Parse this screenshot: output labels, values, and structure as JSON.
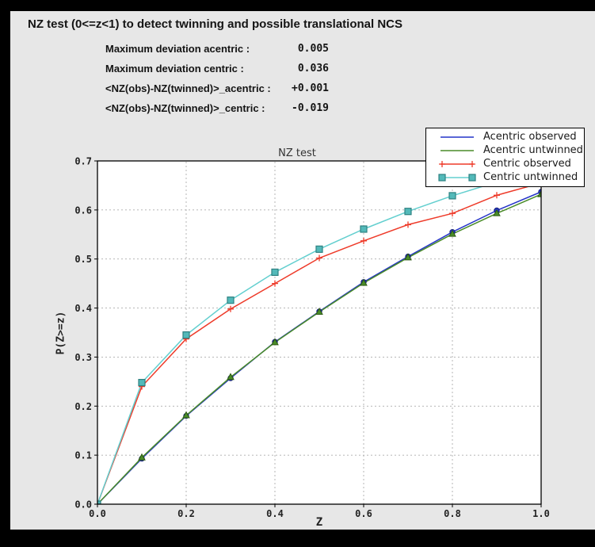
{
  "window": {
    "heading": "NZ test (0<=z<1) to detect twinning and possible translational NCS",
    "stats": [
      {
        "label": "Maximum deviation acentric :",
        "value": "0.005"
      },
      {
        "label": "Maximum deviation centric :",
        "value": "0.036"
      },
      {
        "label": "<NZ(obs)-NZ(twinned)>_acentric :",
        "value": "+0.001"
      },
      {
        "label": "<NZ(obs)-NZ(twinned)>_centric :",
        "value": "-0.019"
      }
    ]
  },
  "chart_data": {
    "type": "line",
    "title": "NZ test",
    "xlabel": "Z",
    "ylabel": "P(Z>=z)",
    "xlim": [
      0.0,
      1.0
    ],
    "ylim": [
      0.0,
      0.7
    ],
    "xticks": [
      0.0,
      0.2,
      0.4,
      0.6,
      0.8,
      1.0
    ],
    "yticks": [
      0.0,
      0.1,
      0.2,
      0.3,
      0.4,
      0.5,
      0.6,
      0.7
    ],
    "grid": true,
    "legend_position": "upper right",
    "x": [
      0.0,
      0.1,
      0.2,
      0.3,
      0.4,
      0.5,
      0.6,
      0.7,
      0.8,
      0.9,
      1.0
    ],
    "series": [
      {
        "name": "Acentric observed",
        "color": "#2433c8",
        "marker": "circle",
        "marker_edge": "#141f7a",
        "values": [
          0.0,
          0.093,
          0.18,
          0.257,
          0.331,
          0.393,
          0.453,
          0.505,
          0.555,
          0.599,
          0.637
        ]
      },
      {
        "name": "Acentric untwinned",
        "color": "#4a8c29",
        "marker": "triangle",
        "marker_edge": "#2c5a12",
        "values": [
          0.0,
          0.095,
          0.181,
          0.259,
          0.33,
          0.392,
          0.451,
          0.503,
          0.551,
          0.593,
          0.632
        ]
      },
      {
        "name": "Centric observed",
        "color": "#ee3b2a",
        "marker": "plus",
        "values": [
          0.0,
          0.24,
          0.337,
          0.398,
          0.45,
          0.502,
          0.537,
          0.57,
          0.593,
          0.63,
          0.655
        ]
      },
      {
        "name": "Centric untwinned",
        "color": "#63cfcf",
        "marker": "square",
        "marker_fill": "#53b9b9",
        "marker_edge": "#2e8181",
        "values": [
          0.0,
          0.248,
          0.345,
          0.416,
          0.473,
          0.52,
          0.561,
          0.597,
          0.629,
          0.657,
          0.683
        ]
      }
    ]
  }
}
